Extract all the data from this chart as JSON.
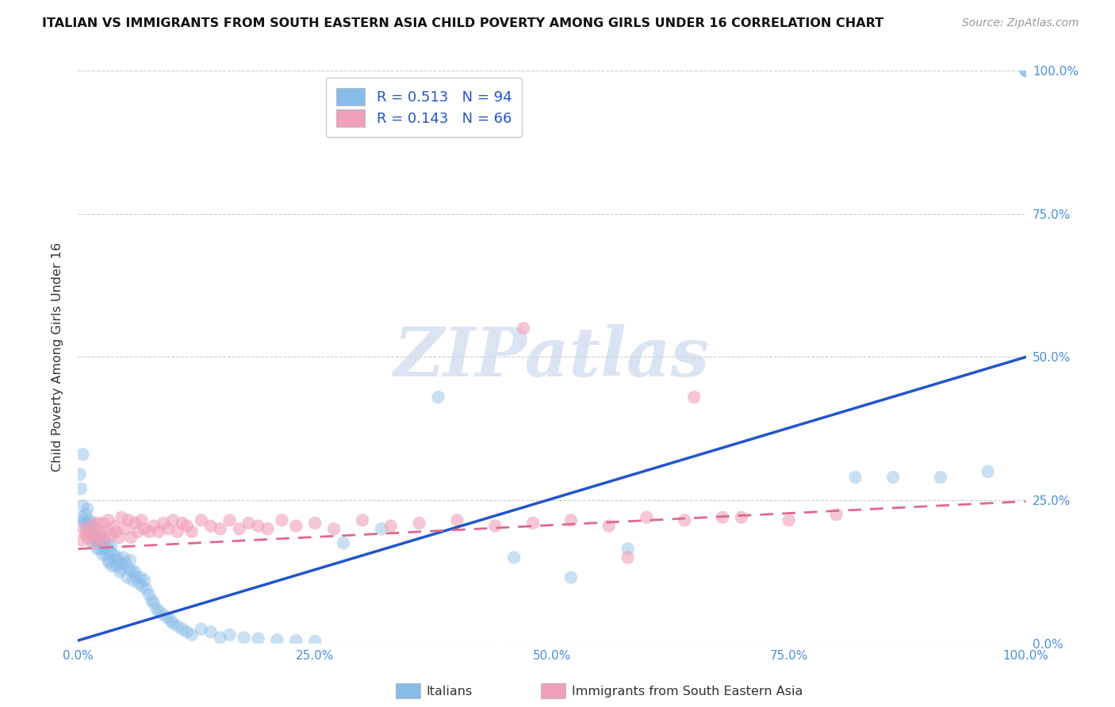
{
  "title": "ITALIAN VS IMMIGRANTS FROM SOUTH EASTERN ASIA CHILD POVERTY AMONG GIRLS UNDER 16 CORRELATION CHART",
  "source": "Source: ZipAtlas.com",
  "ylabel": "Child Poverty Among Girls Under 16",
  "blue_R": "0.513",
  "blue_N": "94",
  "pink_R": "0.143",
  "pink_N": "66",
  "blue_color": "#88bce8",
  "pink_color": "#f0a0b8",
  "blue_line_color": "#2255cc",
  "pink_line_color": "#e06888",
  "watermark_text": "ZIPatlas",
  "legend_label_blue": "Italians",
  "legend_label_pink": "Immigrants from South Eastern Asia",
  "blue_scatter_x": [
    0.002,
    0.003,
    0.004,
    0.005,
    0.006,
    0.007,
    0.008,
    0.009,
    0.01,
    0.01,
    0.011,
    0.012,
    0.013,
    0.014,
    0.015,
    0.015,
    0.016,
    0.017,
    0.018,
    0.019,
    0.02,
    0.02,
    0.021,
    0.022,
    0.023,
    0.024,
    0.025,
    0.026,
    0.027,
    0.028,
    0.03,
    0.031,
    0.032,
    0.033,
    0.034,
    0.035,
    0.036,
    0.038,
    0.04,
    0.041,
    0.042,
    0.044,
    0.045,
    0.046,
    0.048,
    0.05,
    0.052,
    0.054,
    0.055,
    0.057,
    0.058,
    0.06,
    0.062,
    0.064,
    0.066,
    0.068,
    0.07,
    0.072,
    0.075,
    0.078,
    0.08,
    0.083,
    0.086,
    0.09,
    0.094,
    0.098,
    0.1,
    0.105,
    0.11,
    0.115,
    0.12,
    0.13,
    0.14,
    0.15,
    0.16,
    0.175,
    0.19,
    0.21,
    0.23,
    0.25,
    0.28,
    0.32,
    0.38,
    0.46,
    0.52,
    0.58,
    0.82,
    0.86,
    0.91,
    0.96,
    1.0,
    1.0,
    1.0,
    0.005
  ],
  "blue_scatter_y": [
    0.295,
    0.27,
    0.22,
    0.24,
    0.215,
    0.21,
    0.225,
    0.2,
    0.235,
    0.21,
    0.195,
    0.215,
    0.19,
    0.205,
    0.21,
    0.175,
    0.195,
    0.185,
    0.2,
    0.18,
    0.185,
    0.165,
    0.175,
    0.19,
    0.165,
    0.18,
    0.175,
    0.155,
    0.165,
    0.17,
    0.155,
    0.175,
    0.145,
    0.14,
    0.16,
    0.17,
    0.135,
    0.155,
    0.145,
    0.135,
    0.15,
    0.125,
    0.14,
    0.13,
    0.15,
    0.14,
    0.115,
    0.13,
    0.145,
    0.125,
    0.11,
    0.125,
    0.115,
    0.105,
    0.115,
    0.1,
    0.11,
    0.095,
    0.085,
    0.075,
    0.07,
    0.06,
    0.055,
    0.05,
    0.045,
    0.04,
    0.035,
    0.03,
    0.025,
    0.02,
    0.015,
    0.025,
    0.02,
    0.01,
    0.015,
    0.01,
    0.008,
    0.006,
    0.005,
    0.004,
    0.175,
    0.2,
    0.43,
    0.15,
    0.115,
    0.165,
    0.29,
    0.29,
    0.29,
    0.3,
    1.0,
    1.0,
    1.0,
    0.33
  ],
  "pink_scatter_x": [
    0.004,
    0.006,
    0.008,
    0.01,
    0.012,
    0.014,
    0.016,
    0.018,
    0.02,
    0.022,
    0.024,
    0.026,
    0.028,
    0.03,
    0.032,
    0.035,
    0.038,
    0.04,
    0.043,
    0.046,
    0.05,
    0.053,
    0.056,
    0.06,
    0.063,
    0.067,
    0.07,
    0.075,
    0.08,
    0.085,
    0.09,
    0.095,
    0.1,
    0.105,
    0.11,
    0.115,
    0.12,
    0.13,
    0.14,
    0.15,
    0.16,
    0.17,
    0.18,
    0.19,
    0.2,
    0.215,
    0.23,
    0.25,
    0.27,
    0.3,
    0.33,
    0.36,
    0.4,
    0.44,
    0.48,
    0.52,
    0.56,
    0.6,
    0.64,
    0.68,
    0.47,
    0.58,
    0.65,
    0.7,
    0.75,
    0.8
  ],
  "pink_scatter_y": [
    0.18,
    0.2,
    0.19,
    0.185,
    0.195,
    0.205,
    0.175,
    0.19,
    0.21,
    0.185,
    0.195,
    0.21,
    0.18,
    0.195,
    0.215,
    0.19,
    0.205,
    0.195,
    0.185,
    0.22,
    0.2,
    0.215,
    0.185,
    0.21,
    0.195,
    0.215,
    0.2,
    0.195,
    0.205,
    0.195,
    0.21,
    0.2,
    0.215,
    0.195,
    0.21,
    0.205,
    0.195,
    0.215,
    0.205,
    0.2,
    0.215,
    0.2,
    0.21,
    0.205,
    0.2,
    0.215,
    0.205,
    0.21,
    0.2,
    0.215,
    0.205,
    0.21,
    0.215,
    0.205,
    0.21,
    0.215,
    0.205,
    0.22,
    0.215,
    0.22,
    0.55,
    0.15,
    0.43,
    0.22,
    0.215,
    0.225
  ],
  "blue_line_x": [
    0.0,
    1.0
  ],
  "blue_line_y": [
    0.005,
    0.5
  ],
  "pink_line_x": [
    0.0,
    1.0
  ],
  "pink_line_y": [
    0.165,
    0.248
  ],
  "xlim": [
    0.0,
    1.0
  ],
  "ylim": [
    0.0,
    1.0
  ],
  "x_ticks": [
    0.0,
    0.25,
    0.5,
    0.75,
    1.0
  ],
  "x_tick_labels": [
    "0.0%",
    "25.0%",
    "50.0%",
    "75.0%",
    "100.0%"
  ],
  "y_ticks": [
    0.0,
    0.25,
    0.5,
    0.75,
    1.0
  ],
  "y_tick_labels": [
    "0.0%",
    "25.0%",
    "50.0%",
    "75.0%",
    "100.0%"
  ],
  "tick_color": "#4a90d9",
  "watermark_color": "#ccd9ee",
  "watermark_fontsize": 62,
  "title_fontsize": 11.5,
  "source_fontsize": 10,
  "scatter_size": 140,
  "scatter_alpha": 0.45
}
